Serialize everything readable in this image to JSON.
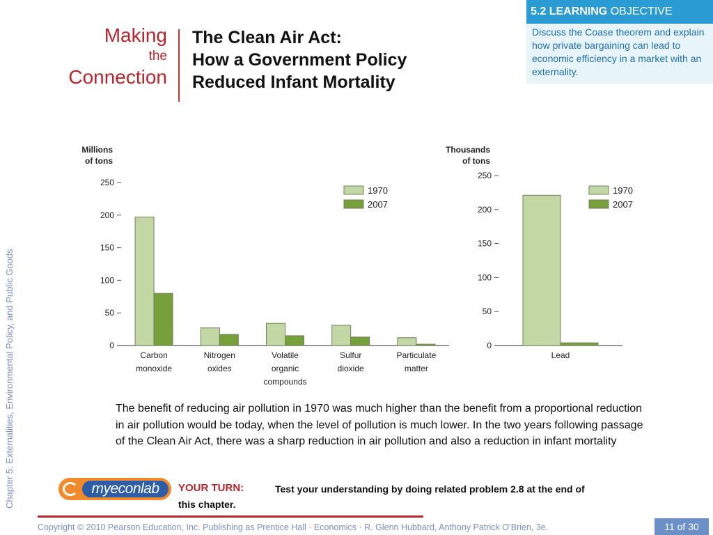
{
  "side_label": "Chapter 5: Externalities, Environmental Policy, and Public Goods",
  "making_connection": {
    "line1": "Making",
    "line2": "the",
    "line3": "Connection"
  },
  "title": {
    "line1": "The Clean Air Act:",
    "line2": "How a Government Policy",
    "line3": "Reduced Infant Mortality"
  },
  "learning_objective": {
    "heading_bold": "5.2 LEARNING",
    "heading_rest": "OBJECTIVE",
    "text": "Discuss the Coase theorem and explain how private bargaining can lead to economic efficiency in a market with an externality."
  },
  "colors": {
    "bar_1970": "#c3d7a4",
    "bar_2007": "#76a03a",
    "accent": "#b5252e",
    "lo_blue": "#2b9bd3"
  },
  "chart_data": [
    {
      "type": "bar",
      "ylabel": [
        "Millions",
        "of tons"
      ],
      "ylim": [
        0,
        250
      ],
      "yticks": [
        0,
        50,
        100,
        150,
        200,
        250
      ],
      "categories": [
        [
          "Carbon",
          "monoxide"
        ],
        [
          "Nitrogen",
          "oxides"
        ],
        [
          "Volatile",
          "organic",
          "compounds"
        ],
        [
          "Sulfur",
          "dioxide"
        ],
        [
          "Particulate",
          "matter"
        ]
      ],
      "series": [
        {
          "name": "1970",
          "values": [
            197,
            27,
            34,
            31,
            12
          ]
        },
        {
          "name": "2007",
          "values": [
            80,
            17,
            15,
            13,
            2
          ]
        }
      ],
      "legend": "top-right",
      "grid": false
    },
    {
      "type": "bar",
      "ylabel": [
        "Thousands",
        "of tons"
      ],
      "ylim": [
        0,
        250
      ],
      "yticks": [
        0,
        50,
        100,
        150,
        200,
        250
      ],
      "categories": [
        [
          "Lead"
        ]
      ],
      "series": [
        {
          "name": "1970",
          "values": [
            221
          ]
        },
        {
          "name": "2007",
          "values": [
            4
          ]
        }
      ],
      "legend": "top-right",
      "grid": false
    }
  ],
  "body_text": "The benefit of reducing air pollution in 1970 was much higher than the benefit from a proportional reduction in air pollution would be today, when the level of pollution is much lower. In the two years following passage of the Clean Air Act, there was a sharp reduction in air pollution and also a reduction in infant mortality",
  "logo_text": "myeconlab",
  "your_turn": {
    "label": "YOUR TURN:",
    "text_line1": "Test your understanding by doing related problem 2.8 at the end of",
    "text_line2": "this chapter."
  },
  "copyright": "Copyright © 2010 Pearson Education, Inc. Publishing as Prentice Hall · Economics · R. Glenn Hubbard, Anthony Patrick O’Brien, 3e.",
  "pager": "11 of 30"
}
